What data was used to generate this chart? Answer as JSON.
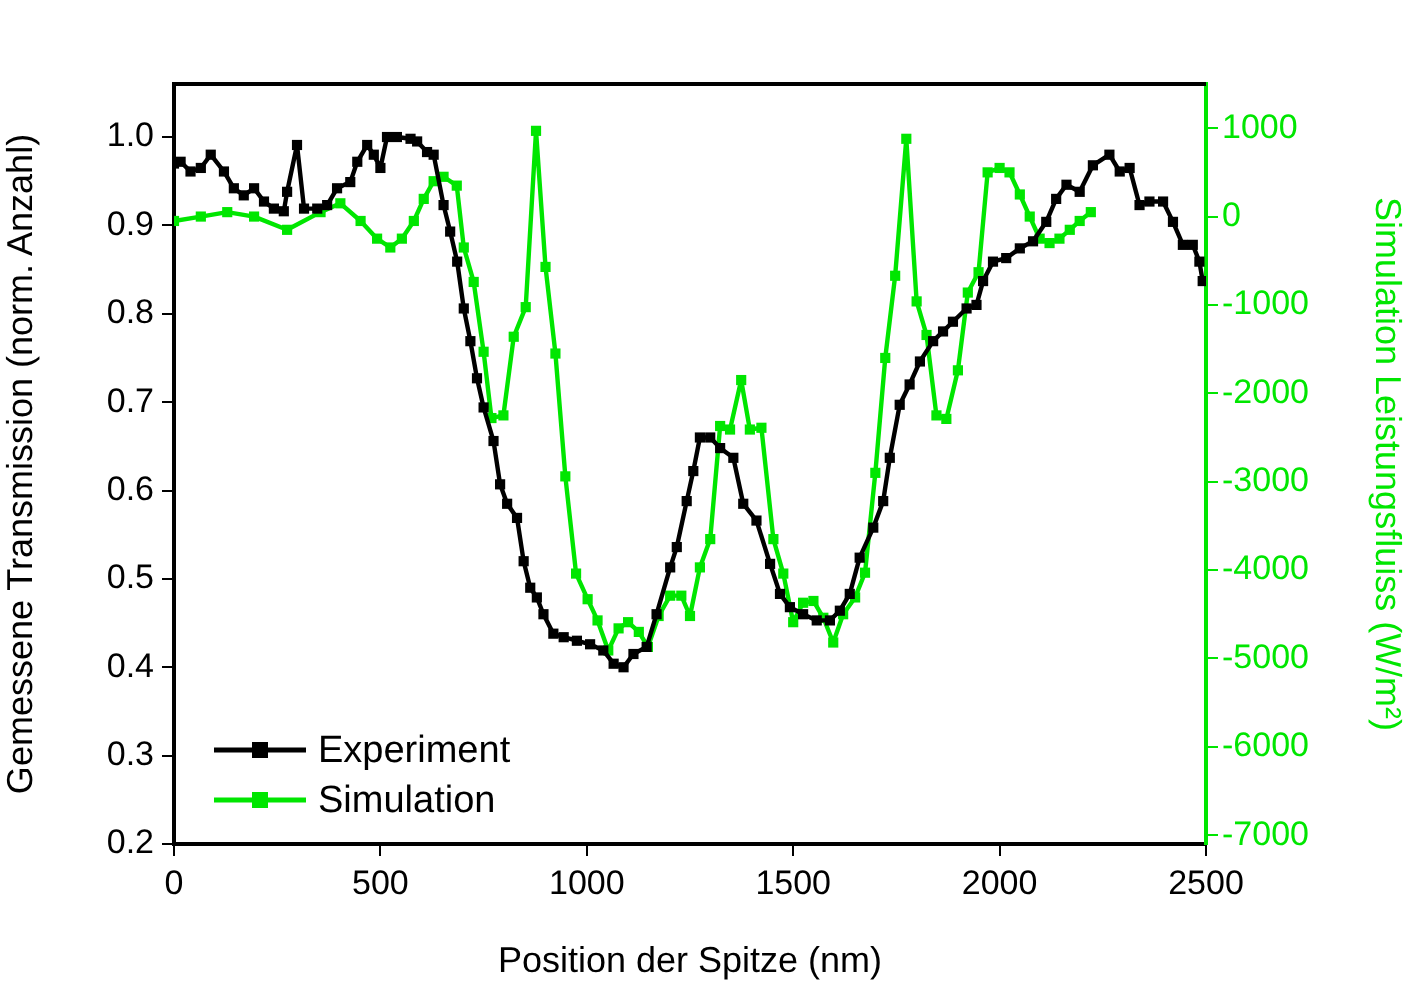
{
  "chart_data": {
    "type": "line",
    "xlabel": "Position der Spitze (nm)",
    "ylabel": "Gemessene Transmission (norm. Anzahl)",
    "y2label": "Simulation Leistungsfluiss (W/m²)",
    "xlim": [
      0,
      2500
    ],
    "xticks": [
      0,
      500,
      1000,
      1500,
      2000,
      2500
    ],
    "ylim": [
      0.2,
      1.06
    ],
    "yticks": [
      0.2,
      0.3,
      0.4,
      0.5,
      0.6,
      0.7,
      0.8,
      0.9,
      {
        "value": 1,
        "label": "1.0"
      }
    ],
    "y2lim": [
      -7100,
      1500
    ],
    "y2ticks": [
      -7000,
      -6000,
      -5000,
      -4000,
      -3000,
      -2000,
      -1000,
      0,
      1000
    ],
    "grid": false,
    "legend": "bottom left",
    "marker": "square",
    "line_style": "solid",
    "series": [
      {
        "name": "Experiment",
        "color": "#000000",
        "x": [
          0,
          16,
          40,
          65,
          89,
          121,
          145,
          169,
          194,
          218,
          242,
          266,
          274,
          298,
          315,
          347,
          371,
          395,
          427,
          444,
          468,
          484,
          500,
          516,
          540,
          573,
          589,
          613,
          629,
          653,
          669,
          686,
          702,
          718,
          734,
          750,
          774,
          790,
          807,
          831,
          847,
          863,
          879,
          895,
          919,
          944,
          976,
          1008,
          1040,
          1065,
          1089,
          1113,
          1145,
          1169,
          1202,
          1218,
          1242,
          1258,
          1274,
          1299,
          1323,
          1355,
          1379,
          1411,
          1444,
          1468,
          1492,
          1524,
          1557,
          1589,
          1613,
          1637,
          1661,
          1694,
          1718,
          1734,
          1758,
          1782,
          1807,
          1839,
          1863,
          1887,
          1920,
          1944,
          1960,
          1984,
          2016,
          2049,
          2081,
          2113,
          2137,
          2162,
          2194,
          2226,
          2266,
          2291,
          2315,
          2339,
          2363,
          2396,
          2420,
          2444,
          2468,
          2484,
          2492
        ],
        "values": [
          0.97,
          0.972,
          0.961,
          0.965,
          0.98,
          0.961,
          0.942,
          0.934,
          0.942,
          0.927,
          0.919,
          0.916,
          0.938,
          0.991,
          0.919,
          0.919,
          0.923,
          0.942,
          0.949,
          0.972,
          0.991,
          0.98,
          0.965,
          1.0,
          1.0,
          0.998,
          0.995,
          0.983,
          0.98,
          0.923,
          0.893,
          0.859,
          0.806,
          0.769,
          0.727,
          0.694,
          0.656,
          0.607,
          0.585,
          0.569,
          0.52,
          0.49,
          0.479,
          0.46,
          0.438,
          0.434,
          0.43,
          0.426,
          0.419,
          0.404,
          0.4,
          0.415,
          0.423,
          0.46,
          0.513,
          0.536,
          0.588,
          0.622,
          0.66,
          0.66,
          0.648,
          0.637,
          0.585,
          0.566,
          0.517,
          0.483,
          0.468,
          0.46,
          0.453,
          0.453,
          0.464,
          0.483,
          0.524,
          0.558,
          0.588,
          0.637,
          0.697,
          0.72,
          0.746,
          0.769,
          0.78,
          0.791,
          0.806,
          0.81,
          0.837,
          0.859,
          0.863,
          0.874,
          0.882,
          0.904,
          0.93,
          0.946,
          0.938,
          0.968,
          0.98,
          0.961,
          0.965,
          0.923,
          0.927,
          0.927,
          0.904,
          0.878,
          0.878,
          0.859,
          0.837
        ]
      },
      {
        "name": "Simulation",
        "color": "#00e600",
        "axis": "y2",
        "x": [
          0,
          65,
          129,
          194,
          274,
          355,
          403,
          452,
          492,
          524,
          552,
          581,
          605,
          629,
          653,
          685,
          702,
          726,
          750,
          769,
          798,
          823,
          852,
          877,
          900,
          924,
          948,
          974,
          1002,
          1026,
          1052,
          1077,
          1100,
          1126,
          1148,
          1174,
          1202,
          1229,
          1250,
          1274,
          1299,
          1323,
          1347,
          1374,
          1395,
          1423,
          1452,
          1476,
          1500,
          1524,
          1549,
          1573,
          1597,
          1621,
          1650,
          1674,
          1699,
          1723,
          1747,
          1774,
          1799,
          1823,
          1847,
          1871,
          1899,
          1923,
          1949,
          1971,
          2000,
          2024,
          2049,
          2073,
          2097,
          2121,
          2145,
          2170,
          2194,
          2221
        ],
        "values": [
          -50,
          0,
          50,
          0,
          -150,
          50,
          150,
          -50,
          -250,
          -350,
          -250,
          -50,
          200,
          400,
          450,
          350,
          -350,
          -740,
          -1530,
          -2280,
          -2250,
          -1360,
          -1025,
          970,
          -570,
          -1550,
          -2940,
          -4040,
          -4330,
          -4570,
          -4910,
          -4660,
          -4590,
          -4700,
          -4870,
          -4520,
          -4290,
          -4290,
          -4520,
          -3970,
          -3650,
          -2370,
          -2410,
          -1850,
          -2410,
          -2390,
          -3650,
          -4040,
          -4590,
          -4370,
          -4350,
          -4540,
          -4820,
          -4500,
          -4310,
          -4030,
          -2900,
          -1600,
          -670,
          880,
          -960,
          -1340,
          -2250,
          -2290,
          -1740,
          -860,
          -630,
          500,
          550,
          500,
          250,
          0,
          -250,
          -300,
          -250,
          -150,
          -50,
          50
        ]
      }
    ]
  }
}
